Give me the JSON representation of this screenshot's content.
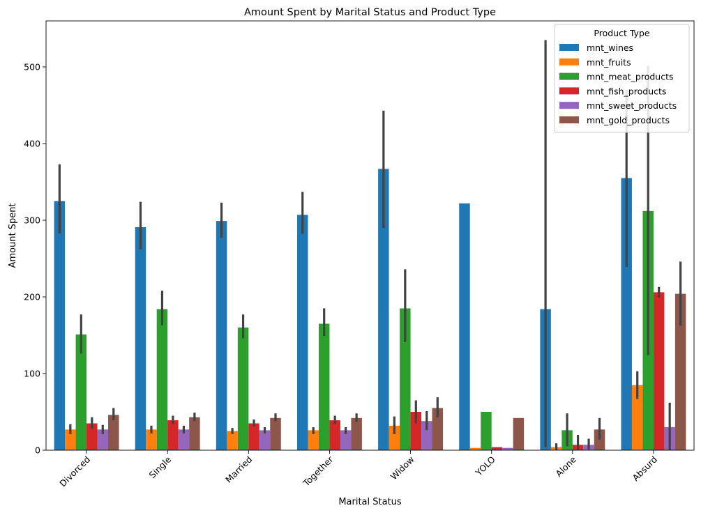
{
  "chart_data": {
    "type": "bar",
    "title": "Amount Spent by Marital Status and Product Type",
    "xlabel": "Marital Status",
    "ylabel": "Amount Spent",
    "ylim": [
      0,
      560
    ],
    "yticks": [
      0,
      100,
      200,
      300,
      400,
      500
    ],
    "grid": false,
    "legend": {
      "title": "Product Type",
      "position": "top-right"
    },
    "categories": [
      "Divorced",
      "Single",
      "Married",
      "Together",
      "Widow",
      "YOLO",
      "Alone",
      "Absurd"
    ],
    "series": [
      {
        "name": "mnt_wines",
        "color": "#1f77b4",
        "values": [
          325,
          291,
          299,
          307,
          367,
          322,
          184,
          355
        ],
        "ci": [
          [
            283,
            373
          ],
          [
            262,
            324
          ],
          [
            277,
            323
          ],
          [
            282,
            337
          ],
          [
            290,
            443
          ],
          null,
          [
            4,
            535
          ],
          [
            239,
            470
          ]
        ]
      },
      {
        "name": "mnt_fruits",
        "color": "#ff7f0e",
        "values": [
          27,
          27,
          25,
          26,
          32,
          3,
          4,
          85
        ],
        "ci": [
          [
            21,
            34
          ],
          [
            22,
            32
          ],
          [
            21,
            29
          ],
          [
            21,
            30
          ],
          [
            21,
            44
          ],
          null,
          [
            0,
            9
          ],
          [
            67,
            103
          ]
        ]
      },
      {
        "name": "mnt_meat_products",
        "color": "#2ca02c",
        "values": [
          151,
          184,
          160,
          165,
          185,
          50,
          26,
          312
        ],
        "ci": [
          [
            126,
            177
          ],
          [
            163,
            208
          ],
          [
            146,
            177
          ],
          [
            149,
            185
          ],
          [
            141,
            236
          ],
          null,
          [
            5,
            48
          ],
          [
            124,
            501
          ]
        ]
      },
      {
        "name": "mnt_fish_products",
        "color": "#d62728",
        "values": [
          35,
          39,
          35,
          39,
          50,
          4,
          7,
          206
        ],
        "ci": [
          [
            28,
            43
          ],
          [
            34,
            45
          ],
          [
            31,
            40
          ],
          [
            34,
            45
          ],
          [
            35,
            65
          ],
          null,
          [
            1,
            20
          ],
          [
            199,
            213
          ]
        ]
      },
      {
        "name": "mnt_sweet_products",
        "color": "#9467bd",
        "values": [
          27,
          27,
          26,
          26,
          38,
          3,
          7,
          30
        ],
        "ci": [
          [
            21,
            33
          ],
          [
            22,
            32
          ],
          [
            22,
            30
          ],
          [
            21,
            30
          ],
          [
            26,
            51
          ],
          null,
          [
            1,
            15
          ],
          [
            0,
            62
          ]
        ]
      },
      {
        "name": "mnt_gold_products",
        "color": "#8c564b",
        "values": [
          46,
          43,
          42,
          42,
          55,
          42,
          27,
          204
        ],
        "ci": [
          [
            39,
            55
          ],
          [
            38,
            49
          ],
          [
            38,
            48
          ],
          [
            37,
            48
          ],
          [
            43,
            69
          ],
          null,
          [
            14,
            42
          ],
          [
            162,
            246
          ]
        ]
      }
    ]
  }
}
